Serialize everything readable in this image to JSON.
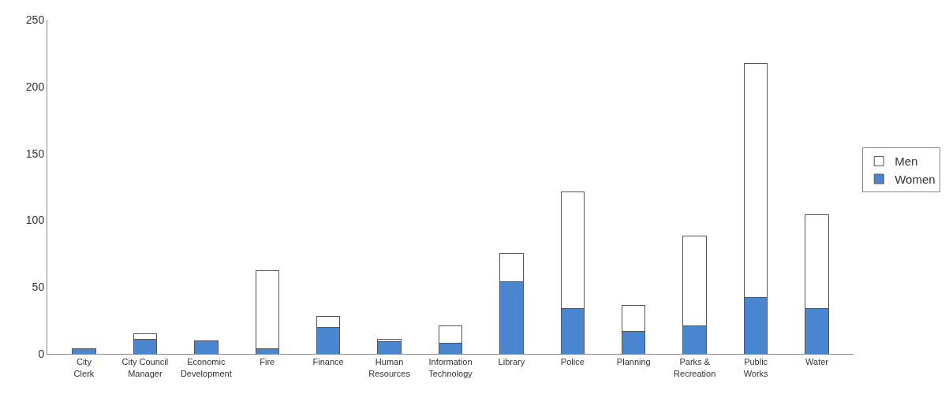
{
  "chart_data": {
    "type": "bar",
    "stacked": true,
    "categories": [
      "City Clerk",
      "City Council Manager",
      "Economic Development",
      "Fire",
      "Finance",
      "Human Resources",
      "Information Technology",
      "Library",
      "Police",
      "Planning",
      "Parks & Recreation",
      "Public Works",
      "Water"
    ],
    "series": [
      {
        "name": "Women",
        "color": "#4a86d0",
        "values": [
          4,
          11,
          10,
          4,
          20,
          9,
          8,
          54,
          34,
          17,
          21,
          42,
          34
        ]
      },
      {
        "name": "Men",
        "color": "#ffffff",
        "values": [
          0,
          4,
          0,
          58,
          8,
          2,
          13,
          21,
          87,
          19,
          67,
          175,
          70
        ]
      }
    ],
    "ylim": [
      0,
      250
    ],
    "yticks": [
      0,
      50,
      100,
      150,
      200,
      250
    ],
    "legend": "right"
  }
}
